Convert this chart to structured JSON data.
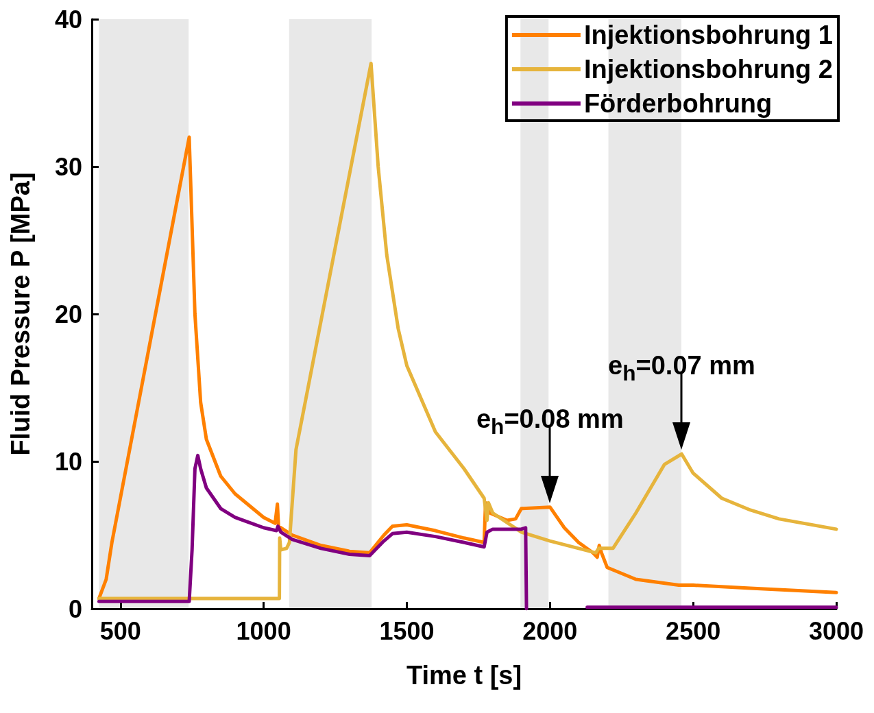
{
  "chart_data": {
    "type": "line",
    "xlabel": "Time t [s]",
    "ylabel": "Fluid Pressure P [MPa]",
    "xlim": [
      400,
      3000
    ],
    "xticks": [
      500,
      1000,
      1500,
      2000,
      2500,
      3000
    ],
    "ylim": [
      0,
      40
    ],
    "yticks": [
      0,
      10,
      20,
      30,
      40
    ],
    "grid": false,
    "legend": "top right",
    "marker": "none",
    "line_style": "solid",
    "series": [
      {
        "name": "Injektionsbohrung 1",
        "color": "#ff8000",
        "x": [
          425,
          450,
          470,
          740,
          760,
          780,
          800,
          850,
          900,
          1000,
          1040,
          1048,
          1052,
          1100,
          1200,
          1300,
          1370,
          1420,
          1450,
          1500,
          1600,
          1700,
          1770,
          1775,
          1790,
          1850,
          1880,
          1900,
          2000,
          2050,
          2100,
          2150,
          2165,
          2172,
          2180,
          2200,
          2300,
          2450,
          2500,
          2700,
          3000
        ],
        "values": [
          0.7,
          2,
          4.5,
          32,
          20,
          14,
          11.5,
          9,
          7.8,
          6.2,
          5.8,
          7.1,
          5.6,
          5.0,
          4.3,
          3.9,
          3.8,
          5.0,
          5.6,
          5.7,
          5.3,
          4.8,
          4.5,
          7.2,
          6.5,
          6.0,
          6.1,
          6.8,
          6.9,
          5.5,
          4.5,
          3.8,
          3.5,
          4.3,
          3.8,
          2.8,
          2.0,
          1.6,
          1.6,
          1.4,
          1.1
        ]
      },
      {
        "name": "Injektionsbohrung 2",
        "color": "#e6b43c",
        "x": [
          425,
          1055,
          1056,
          1060,
          1080,
          1090,
          1113,
          1375,
          1400,
          1430,
          1470,
          1500,
          1600,
          1700,
          1770,
          1780,
          1785,
          1800,
          1900,
          2000,
          2100,
          2160,
          2170,
          2200,
          2220,
          2300,
          2400,
          2460,
          2500,
          2600,
          2700,
          2800,
          3000
        ],
        "values": [
          0.7,
          0.7,
          4.8,
          4.0,
          4.1,
          4.5,
          10.8,
          37,
          30,
          24,
          19,
          16.5,
          12,
          9.5,
          7.5,
          6,
          7.2,
          6.5,
          5.2,
          4.6,
          4.1,
          3.8,
          4.1,
          4.1,
          4.1,
          6.5,
          9.8,
          10.5,
          9.2,
          7.5,
          6.7,
          6.1,
          5.4
        ]
      },
      {
        "name": "Förderbohrung",
        "color": "#800080",
        "x": [
          425,
          740,
          750,
          760,
          770,
          780,
          800,
          850,
          900,
          1000,
          1045,
          1050,
          1060,
          1100,
          1200,
          1300,
          1370,
          1420,
          1450,
          1500,
          1600,
          1700,
          1770,
          1780,
          1800,
          1850,
          1900,
          1915,
          1918,
          2000,
          2130,
          3000
        ],
        "values": [
          0.5,
          0.5,
          4,
          9.5,
          10.4,
          9.5,
          8.2,
          6.8,
          6.2,
          5.5,
          5.3,
          5.6,
          5.2,
          4.7,
          4.1,
          3.7,
          3.6,
          4.6,
          5.1,
          5.2,
          4.9,
          4.5,
          4.2,
          5.2,
          5.4,
          5.4,
          5.4,
          5.5,
          0,
          null,
          0.1,
          0.1
        ]
      }
    ],
    "bands": [
      {
        "axis": "x",
        "from": 425,
        "to": 738,
        "color": "#e8e8e8"
      },
      {
        "axis": "x",
        "from": 1089,
        "to": 1377,
        "color": "#e8e8e8"
      },
      {
        "axis": "x",
        "from": 1897,
        "to": 1995,
        "color": "#e8e8e8"
      },
      {
        "axis": "x",
        "from": 2204,
        "to": 2459,
        "color": "#e8e8e8"
      }
    ],
    "annotations": [
      {
        "text": "e$_{h}$=0.08 mm",
        "x": 2000,
        "y": 6.9
      },
      {
        "text": "e$_{h}$=0.07 mm",
        "x": 2460,
        "y": 10.5
      }
    ]
  }
}
